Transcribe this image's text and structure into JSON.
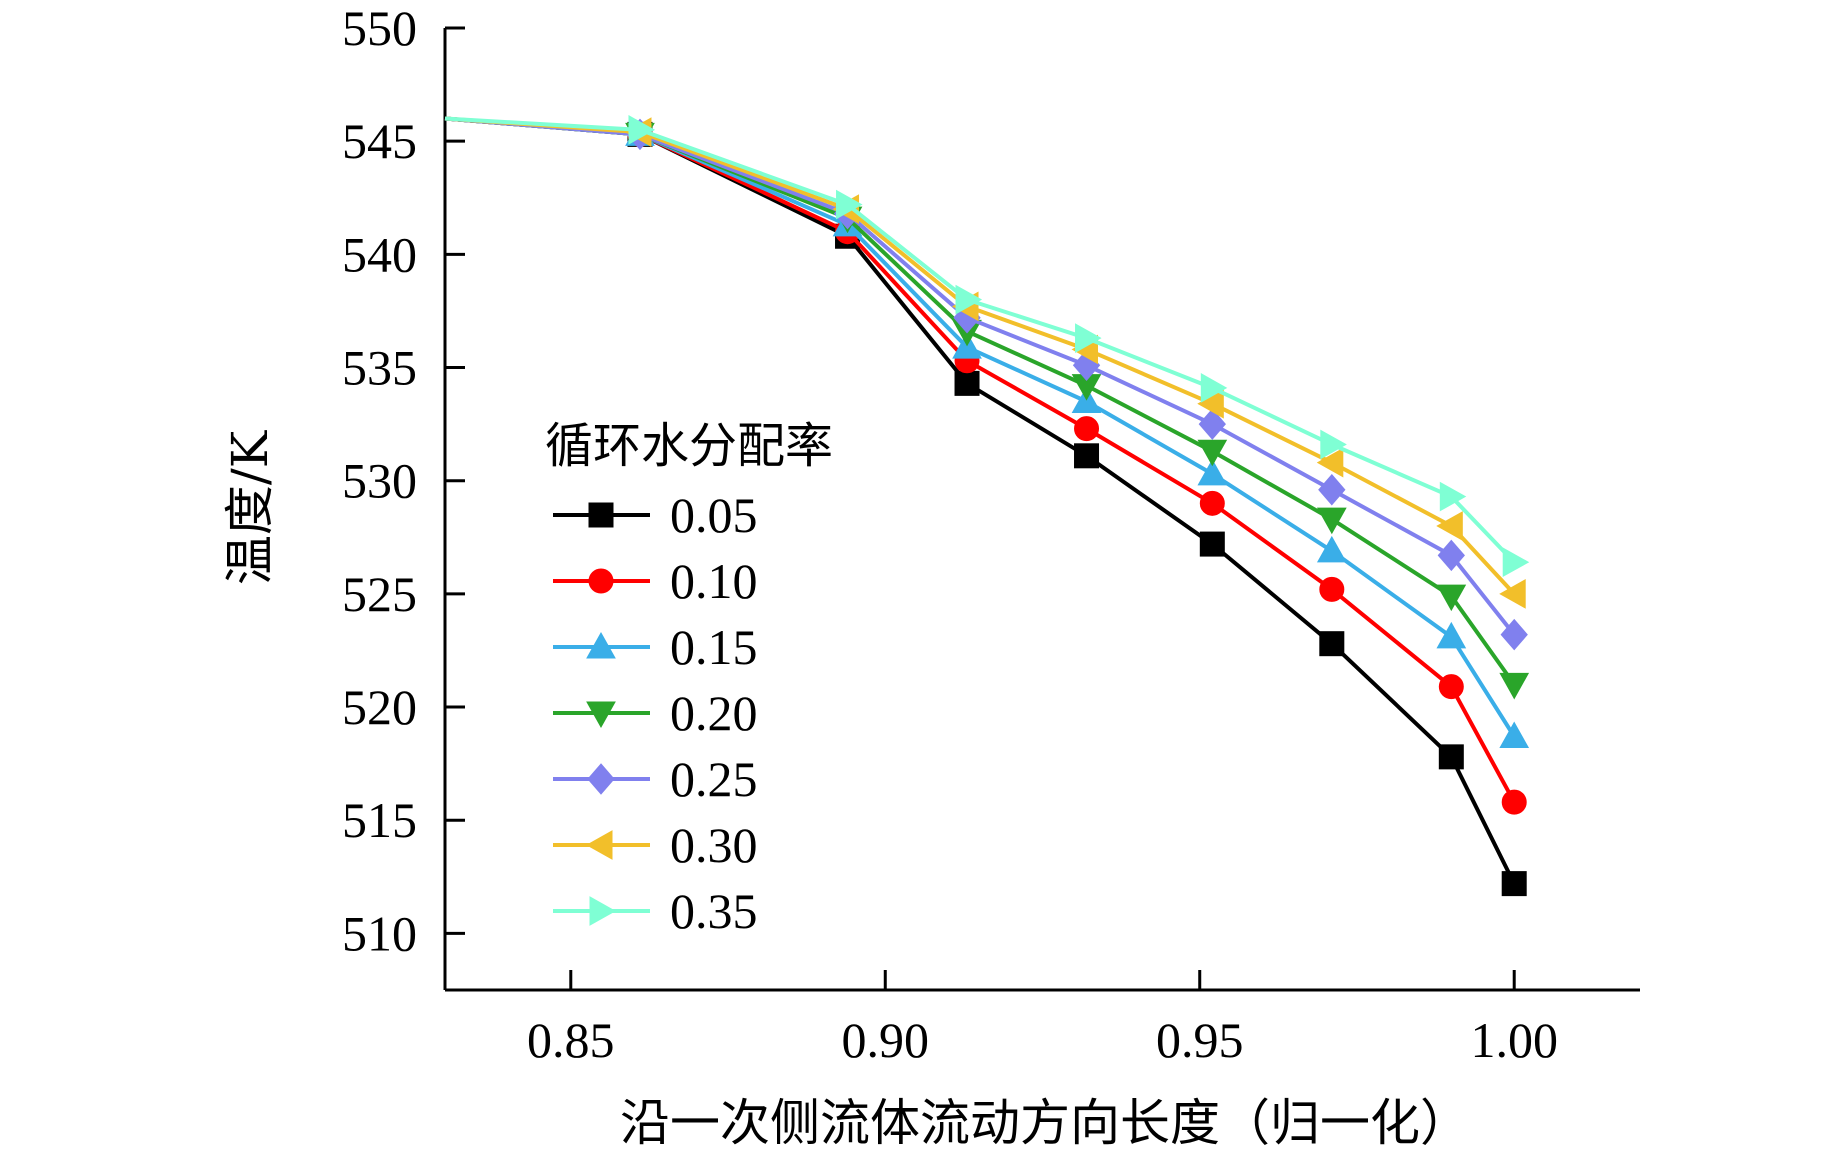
{
  "chart_data": {
    "type": "line",
    "title": "",
    "xlabel": "沿一次侧流体流动方向长度（归一化）",
    "ylabel": "温度/K",
    "xlim": [
      0.83,
      1.02
    ],
    "ylim": [
      507.5,
      550
    ],
    "xticks": [
      "0.85",
      "0.90",
      "0.95",
      "1.00"
    ],
    "yticks": [
      "510",
      "515",
      "520",
      "525",
      "530",
      "535",
      "540",
      "545",
      "550"
    ],
    "grid": false,
    "legend": {
      "title": "循环水分配率",
      "placement": "left-middle"
    },
    "x": [
      0.83,
      0.861,
      0.894,
      0.913,
      0.932,
      0.952,
      0.971,
      0.99,
      1.0
    ],
    "series": [
      {
        "name": "0.05",
        "color": "#000000",
        "marker": "square",
        "values": [
          546.0,
          545.3,
          540.8,
          534.3,
          531.1,
          527.2,
          522.8,
          517.8,
          512.2
        ]
      },
      {
        "name": "0.10",
        "color": "#ff0000",
        "marker": "circle",
        "values": [
          546.0,
          545.3,
          541.0,
          535.3,
          532.3,
          529.0,
          525.2,
          520.9,
          515.8
        ]
      },
      {
        "name": "0.15",
        "color": "#3aaee8",
        "marker": "triangle-up",
        "values": [
          546.0,
          545.3,
          541.3,
          535.9,
          533.5,
          530.3,
          526.9,
          523.1,
          518.7
        ]
      },
      {
        "name": "0.20",
        "color": "#2aa52a",
        "marker": "triangle-down",
        "values": [
          546.0,
          545.3,
          541.6,
          536.6,
          534.2,
          531.3,
          528.3,
          524.9,
          521.0
        ]
      },
      {
        "name": "0.25",
        "color": "#8080ee",
        "marker": "diamond",
        "values": [
          546.0,
          545.3,
          541.8,
          537.2,
          535.1,
          532.5,
          529.6,
          526.7,
          523.2
        ]
      },
      {
        "name": "0.30",
        "color": "#f2bf2a",
        "marker": "triangle-left",
        "values": [
          546.0,
          545.4,
          542.0,
          537.7,
          535.8,
          533.4,
          530.8,
          528.0,
          525.0
        ]
      },
      {
        "name": "0.35",
        "color": "#7fffd4",
        "marker": "triangle-right",
        "values": [
          546.0,
          545.5,
          542.2,
          538.0,
          536.3,
          534.1,
          531.6,
          529.3,
          526.4
        ]
      }
    ]
  }
}
